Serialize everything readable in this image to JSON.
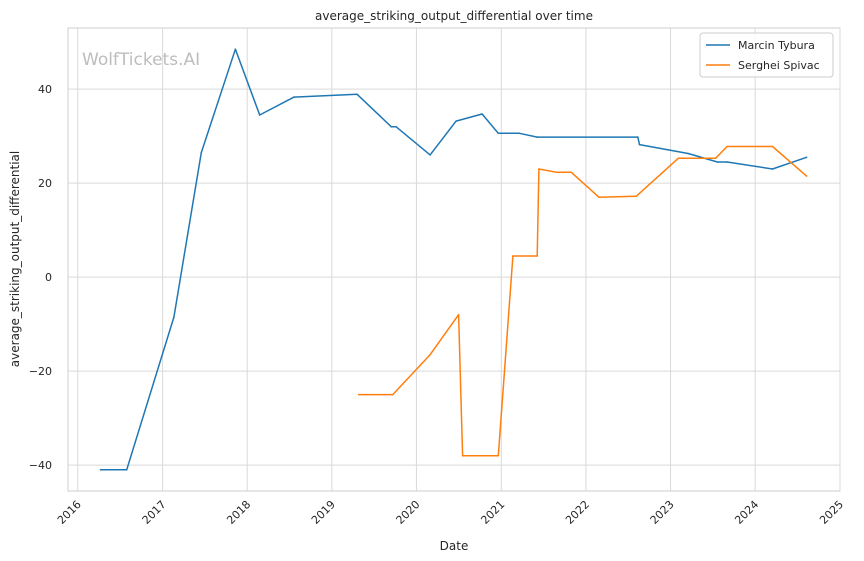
{
  "chart_data": {
    "type": "line",
    "title": "average_striking_output_differential over time",
    "xlabel": "Date",
    "ylabel": "average_striking_output_differential",
    "watermark": "WolfTickets.AI",
    "xlim": [
      "2015-11-20",
      "2025-01-01"
    ],
    "ylim": [
      -45.5,
      53
    ],
    "x_ticks": [
      "2016",
      "2017",
      "2018",
      "2019",
      "2020",
      "2021",
      "2022",
      "2023",
      "2024",
      "2025"
    ],
    "y_ticks": [
      -40,
      -20,
      0,
      20,
      40
    ],
    "grid": true,
    "legend_position": "top-right",
    "series": [
      {
        "name": "Marcin Tybura",
        "color": "#1f77b4",
        "points": [
          [
            "2016-04-08",
            -41
          ],
          [
            "2016-07-30",
            -41
          ],
          [
            "2017-02-19",
            -8.5
          ],
          [
            "2017-06-17",
            26.5
          ],
          [
            "2017-11-11",
            48.5
          ],
          [
            "2018-02-24",
            34.5
          ],
          [
            "2018-07-22",
            38.3
          ],
          [
            "2019-04-20",
            38.9
          ],
          [
            "2019-09-14",
            32
          ],
          [
            "2019-10-05",
            32
          ],
          [
            "2020-02-29",
            26
          ],
          [
            "2020-06-20",
            33.2
          ],
          [
            "2020-10-10",
            34.7
          ],
          [
            "2020-12-19",
            30.6
          ],
          [
            "2021-03-20",
            30.6
          ],
          [
            "2021-06-05",
            29.8
          ],
          [
            "2022-08-13",
            29.8
          ],
          [
            "2022-08-20",
            28.2
          ],
          [
            "2023-03-18",
            26.3
          ],
          [
            "2023-07-22",
            24.5
          ],
          [
            "2023-09-02",
            24.5
          ],
          [
            "2024-03-16",
            23
          ],
          [
            "2024-08-10",
            25.5
          ]
        ]
      },
      {
        "name": "Serghei Spivac",
        "color": "#ff7f0e",
        "points": [
          [
            "2019-04-27",
            -25
          ],
          [
            "2019-09-21",
            -25
          ],
          [
            "2020-02-29",
            -16.5
          ],
          [
            "2020-07-01",
            -8
          ],
          [
            "2020-07-18",
            -38
          ],
          [
            "2020-12-19",
            -38
          ],
          [
            "2021-02-20",
            4.5
          ],
          [
            "2021-06-05",
            4.5
          ],
          [
            "2021-06-12",
            23
          ],
          [
            "2021-08-28",
            22.3
          ],
          [
            "2021-10-30",
            22.3
          ],
          [
            "2022-02-26",
            17
          ],
          [
            "2022-08-06",
            17.2
          ],
          [
            "2023-02-04",
            25.3
          ],
          [
            "2023-07-15",
            25.3
          ],
          [
            "2023-09-02",
            27.8
          ],
          [
            "2024-03-16",
            27.8
          ],
          [
            "2024-08-10",
            21.5
          ]
        ]
      }
    ]
  }
}
